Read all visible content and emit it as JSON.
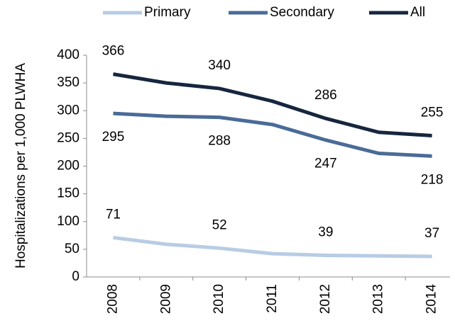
{
  "chart_data": {
    "type": "line",
    "y_label": "Hospitalizations per 1,000 PLWHA",
    "categories": [
      "2008",
      "2009",
      "2010",
      "2011",
      "2012",
      "2013",
      "2014"
    ],
    "series": [
      {
        "name": "Primary",
        "color": "#b8cce4",
        "values": [
          71,
          59,
          52,
          42,
          39,
          38,
          37
        ],
        "label_position": "above"
      },
      {
        "name": "Secondary",
        "color": "#4a6b98",
        "values": [
          295,
          290,
          288,
          275,
          247,
          223,
          218
        ],
        "label_position": "below"
      },
      {
        "name": "All",
        "color": "#17263f",
        "values": [
          366,
          350,
          340,
          317,
          286,
          261,
          255
        ],
        "label_position": "above"
      }
    ],
    "label_every": 2,
    "ylim": [
      0,
      400
    ],
    "yticks": [
      0,
      50,
      100,
      150,
      200,
      250,
      300,
      350,
      400
    ],
    "grid": false,
    "legend": "top"
  }
}
